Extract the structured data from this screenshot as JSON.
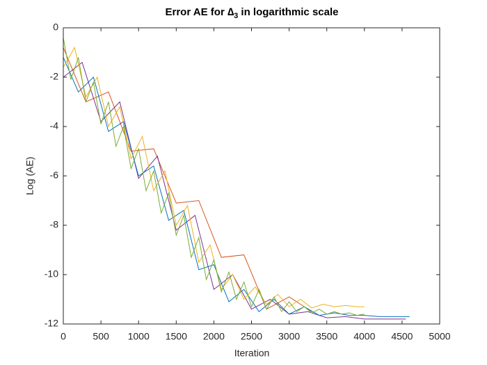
{
  "chart_data": {
    "type": "line",
    "title": {
      "prefix": "Error AE for ∆",
      "subscript": "3",
      "suffix": " in logarithmic scale"
    },
    "x_label": "Iteration",
    "y_label": "Log (AE)",
    "xlim": [
      0,
      5000
    ],
    "xticks": [
      0,
      500,
      1000,
      1500,
      2000,
      2500,
      3000,
      3500,
      4000,
      4500,
      5000
    ],
    "ylim": [
      -12,
      0
    ],
    "yticks": [
      -12,
      -10,
      -8,
      -6,
      -4,
      -2,
      0
    ],
    "grid": false,
    "series": [
      {
        "color": "#D95319",
        "x": [
          0,
          300,
          600,
          900,
          1200,
          1500,
          1800,
          2100,
          2400,
          2700,
          3000,
          3300
        ],
        "values": [
          -0.8,
          -3.0,
          -2.6,
          -5.0,
          -4.9,
          -7.1,
          -7.0,
          -9.3,
          -9.2,
          -11.4,
          -10.9,
          -11.5
        ]
      },
      {
        "color": "#7E2F8E",
        "x": [
          0,
          250,
          500,
          750,
          1000,
          1250,
          1500,
          1750,
          2000,
          2250,
          2500,
          2750,
          3000,
          3250,
          3500,
          3750,
          4000,
          4250,
          4500,
          4550
        ],
        "values": [
          -2.0,
          -1.4,
          -3.8,
          -3.0,
          -6.1,
          -5.2,
          -8.2,
          -7.6,
          -10.6,
          -10.0,
          -11.4,
          -11.0,
          -11.6,
          -11.5,
          -11.75,
          -11.7,
          -11.8,
          -11.8,
          -11.8,
          -11.8
        ]
      },
      {
        "color": "#0072BD",
        "x": [
          0,
          200,
          400,
          600,
          800,
          1000,
          1200,
          1400,
          1600,
          1800,
          2000,
          2200,
          2400,
          2600,
          2800,
          3000,
          3200,
          3400,
          3600,
          3800,
          4000,
          4200,
          4400,
          4600
        ],
        "values": [
          -1.2,
          -2.6,
          -2.0,
          -4.2,
          -3.8,
          -6.0,
          -5.6,
          -7.8,
          -7.4,
          -9.8,
          -9.6,
          -11.1,
          -10.6,
          -11.5,
          -11.0,
          -11.6,
          -11.3,
          -11.65,
          -11.55,
          -11.65,
          -11.65,
          -11.7,
          -11.7,
          -11.7
        ]
      },
      {
        "color": "#EDB120",
        "x": [
          0,
          150,
          300,
          450,
          600,
          750,
          900,
          1050,
          1200,
          1350,
          1500,
          1650,
          1800,
          1950,
          2100,
          2250,
          2400,
          2550,
          2700,
          2850,
          3000,
          3150,
          3300,
          3450,
          3600,
          3750,
          3900,
          4000
        ],
        "values": [
          -1.6,
          -0.8,
          -2.8,
          -2.0,
          -4.0,
          -3.2,
          -5.3,
          -4.4,
          -6.6,
          -5.8,
          -8.0,
          -7.2,
          -9.5,
          -8.8,
          -10.6,
          -10.0,
          -11.0,
          -10.5,
          -11.2,
          -10.8,
          -11.3,
          -11.0,
          -11.35,
          -11.2,
          -11.3,
          -11.25,
          -11.3,
          -11.3
        ]
      },
      {
        "color": "#77AC30",
        "x": [
          0,
          100,
          200,
          300,
          400,
          500,
          600,
          700,
          800,
          900,
          1000,
          1100,
          1200,
          1300,
          1400,
          1500,
          1600,
          1700,
          1800,
          1900,
          2000,
          2100,
          2200,
          2300,
          2400,
          2500,
          2600,
          2700,
          2800,
          2900,
          3000,
          3100,
          3200,
          3300,
          3400,
          3500,
          3600,
          3700,
          3800,
          3900,
          4000
        ],
        "values": [
          -0.4,
          -2.1,
          -1.2,
          -3.0,
          -2.2,
          -3.9,
          -3.0,
          -4.8,
          -4.0,
          -5.7,
          -4.9,
          -6.6,
          -5.8,
          -7.5,
          -6.7,
          -8.4,
          -7.6,
          -9.3,
          -8.5,
          -10.2,
          -9.4,
          -10.7,
          -9.9,
          -11.0,
          -10.3,
          -11.3,
          -10.6,
          -11.4,
          -10.9,
          -11.5,
          -11.1,
          -11.5,
          -11.3,
          -11.55,
          -11.4,
          -11.6,
          -11.5,
          -11.6,
          -11.55,
          -11.65,
          -11.6
        ]
      }
    ]
  }
}
